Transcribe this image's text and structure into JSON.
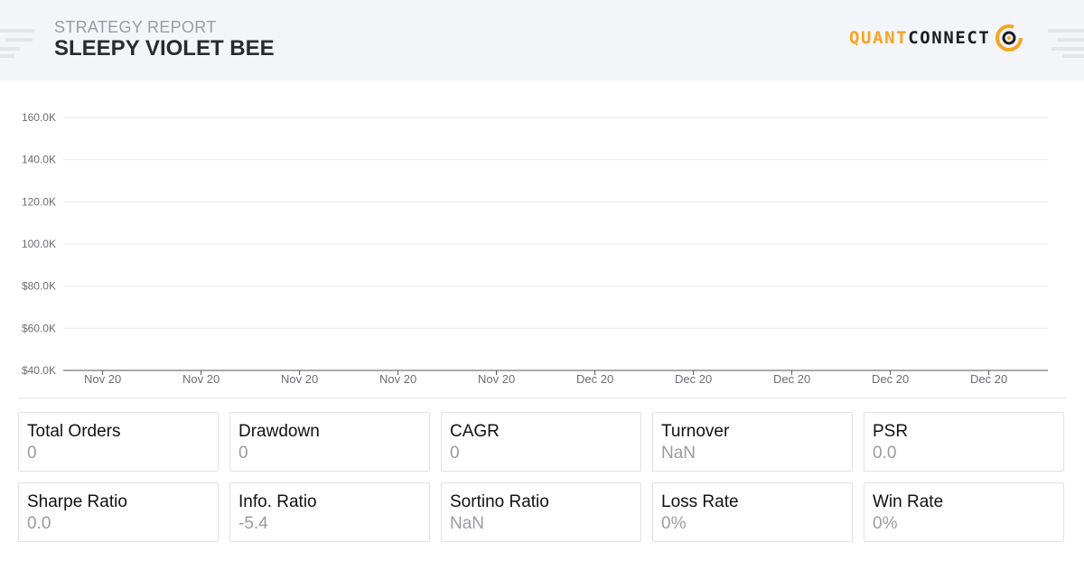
{
  "header": {
    "subtitle": "STRATEGY REPORT",
    "title": "SLEEPY VIOLET BEE",
    "logo": {
      "part1": "QUANT",
      "part2": "CONNECT",
      "icon": "quantconnect-logo-icon",
      "accent_color": "#f5a623"
    }
  },
  "chart_data": {
    "type": "line",
    "title": "",
    "xlabel": "",
    "ylabel": "",
    "y_tick_labels": [
      "160.0K",
      "140.0K",
      "120.0K",
      "100.0K",
      "$80.0K",
      "$60.0K",
      "$40.0K"
    ],
    "y_ticks": [
      160000,
      140000,
      120000,
      100000,
      80000,
      60000,
      40000
    ],
    "ylim": [
      40000,
      160000
    ],
    "x_tick_labels": [
      "Nov 20",
      "Nov 20",
      "Nov 20",
      "Nov 20",
      "Nov 20",
      "Dec 20",
      "Dec 20",
      "Dec 20",
      "Dec 20",
      "Dec 20"
    ],
    "series": [],
    "grid": true
  },
  "stats": [
    {
      "label": "Total Orders",
      "value": "0"
    },
    {
      "label": "Drawdown",
      "value": "0"
    },
    {
      "label": "CAGR",
      "value": "0"
    },
    {
      "label": "Turnover",
      "value": "NaN"
    },
    {
      "label": "PSR",
      "value": "0.0"
    },
    {
      "label": "Sharpe Ratio",
      "value": "0.0"
    },
    {
      "label": "Info. Ratio",
      "value": "-5.4"
    },
    {
      "label": "Sortino Ratio",
      "value": "NaN"
    },
    {
      "label": "Loss Rate",
      "value": "0%"
    },
    {
      "label": "Win Rate",
      "value": "0%"
    }
  ]
}
